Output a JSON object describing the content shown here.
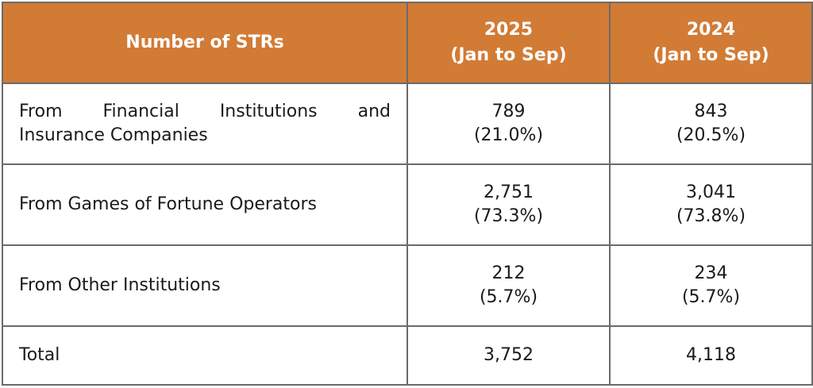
{
  "header": {
    "col1": "Number of STRs",
    "col2_year": "2025",
    "col2_period": "(Jan to Sep)",
    "col3_year": "2024",
    "col3_period": "(Jan to Sep)"
  },
  "rows": [
    {
      "label_line1": "From Financial Institutions and",
      "label_line2": "Insurance Companies",
      "v2025": "789",
      "p2025": "(21.0%)",
      "v2024": "843",
      "p2024": "(20.5%)"
    },
    {
      "label": "From Games of Fortune Operators",
      "v2025": "2,751",
      "p2025": "(73.3%)",
      "v2024": "3,041",
      "p2024": "(73.8%)"
    },
    {
      "label": "From Other Institutions",
      "v2025": "212",
      "p2025": "(5.7%)",
      "v2024": "234",
      "p2024": "(5.7%)"
    },
    {
      "label": "Total",
      "v2025": "3,752",
      "v2024": "4,118"
    }
  ],
  "colors": {
    "header_bg": "#d27b35",
    "header_text": "#ffffff",
    "border": "#6b6b6b"
  }
}
